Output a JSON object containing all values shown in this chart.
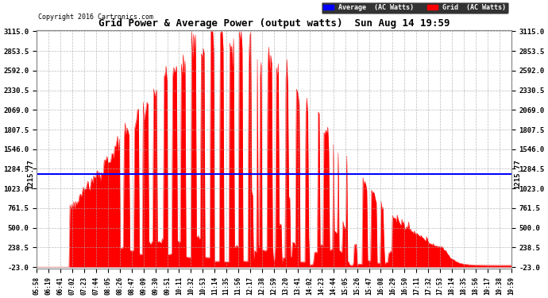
{
  "title": "Grid Power & Average Power (output watts)  Sun Aug 14 19:59",
  "copyright": "Copyright 2016 Cartronics.com",
  "average_value": 1215.77,
  "y_min": -23.0,
  "y_max": 3115.0,
  "yticks": [
    -23.0,
    238.5,
    500.0,
    761.5,
    1023.0,
    1284.5,
    1546.0,
    1807.5,
    2069.0,
    2330.5,
    2592.0,
    2853.5,
    3115.0
  ],
  "ytick_labels": [
    "-23.0",
    "238.5",
    "500.0",
    "761.5",
    "1023.0",
    "1284.5",
    "1546.0",
    "1807.5",
    "2069.0",
    "2330.5",
    "2592.0",
    "2853.5",
    "3115.0"
  ],
  "xtick_labels": [
    "05:58",
    "06:19",
    "06:41",
    "07:02",
    "07:23",
    "07:44",
    "08:05",
    "08:26",
    "08:47",
    "09:09",
    "09:30",
    "09:51",
    "10:11",
    "10:32",
    "10:53",
    "11:14",
    "11:35",
    "11:56",
    "12:17",
    "12:38",
    "12:59",
    "13:20",
    "13:41",
    "14:02",
    "14:23",
    "14:44",
    "15:05",
    "15:26",
    "15:47",
    "16:08",
    "16:29",
    "16:50",
    "17:11",
    "17:32",
    "17:53",
    "18:14",
    "18:35",
    "18:56",
    "19:17",
    "19:38",
    "19:59"
  ],
  "fill_color": "#FF0000",
  "line_color": "#FF0000",
  "average_line_color": "#0000FF",
  "background_color": "#FFFFFF",
  "grid_color": "#AAAAAA",
  "legend_average_bg": "#0000FF",
  "legend_grid_bg": "#FF0000",
  "legend_text_color": "#FFFFFF",
  "title_color": "#000000",
  "copyright_color": "#000000",
  "peak_t": 0.4,
  "sigma": 0.2,
  "peak_value": 3050.0,
  "n_points": 500
}
